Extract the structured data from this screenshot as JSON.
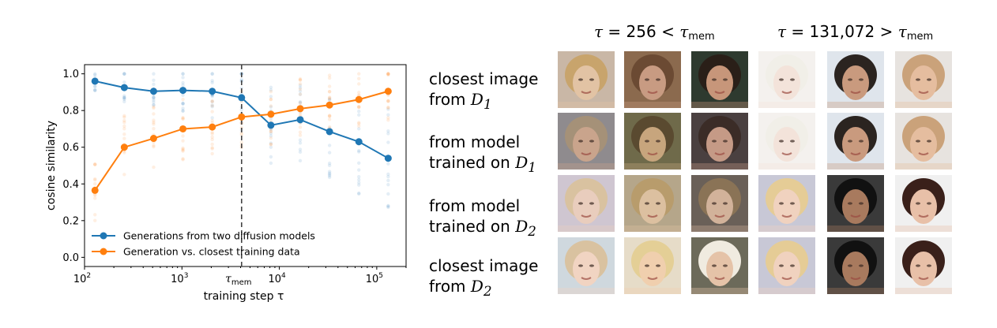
{
  "chart_data": {
    "type": "line",
    "xlabel": "training step τ",
    "ylabel": "cosine similarity",
    "x_scale": "log",
    "xlim": [
      100,
      200000
    ],
    "ylim": [
      -0.05,
      1.05
    ],
    "x_ticks": [
      {
        "value": 100,
        "base": "10",
        "exp": "2"
      },
      {
        "value": 1000,
        "base": "10",
        "exp": "3"
      },
      {
        "value": 10000,
        "base": "10",
        "exp": "4"
      },
      {
        "value": 100000,
        "base": "10",
        "exp": "5"
      }
    ],
    "y_ticks": [
      0.0,
      0.2,
      0.4,
      0.6,
      0.8,
      1.0
    ],
    "y_tick_labels": [
      "0.0",
      "0.2",
      "0.4",
      "0.6",
      "0.8",
      "1.0"
    ],
    "tau_mem": {
      "x": 4096,
      "label_main": "τ",
      "label_sub": "mem"
    },
    "x": [
      128,
      256,
      512,
      1024,
      2048,
      4096,
      8192,
      16384,
      32768,
      65536,
      131072
    ],
    "series": [
      {
        "name": "Generations from two diffusion models",
        "color": "#1f77b4",
        "values": [
          0.96,
          0.925,
          0.905,
          0.91,
          0.905,
          0.87,
          0.72,
          0.75,
          0.685,
          0.63,
          0.54
        ]
      },
      {
        "name": "Generation vs. closest training data",
        "color": "#ff7f0e",
        "values": [
          0.365,
          0.6,
          0.648,
          0.7,
          0.71,
          0.765,
          0.78,
          0.81,
          0.83,
          0.86,
          0.905
        ]
      }
    ],
    "legend_position": "lower-left",
    "grid": false
  },
  "images": {
    "column_headers": [
      {
        "tau": "τ",
        "eq": " = 256 < ",
        "tau_mem": "τ",
        "sub": "mem"
      },
      {
        "tau": "τ",
        "eq": " = 131,072 > ",
        "tau_mem": "τ",
        "sub": "mem"
      }
    ],
    "row_labels": [
      {
        "line1": "closest image",
        "line2_text": "from ",
        "line2_var": "D",
        "line2_sub": "1"
      },
      {
        "line1": "from model",
        "line2_text": "trained on ",
        "line2_var": "D",
        "line2_sub": "1"
      },
      {
        "line1": "from model",
        "line2_text": "trained on ",
        "line2_var": "D",
        "line2_sub": "2"
      },
      {
        "line1": "closest image",
        "line2_text": "from ",
        "line2_var": "D",
        "line2_sub": "2"
      }
    ]
  }
}
